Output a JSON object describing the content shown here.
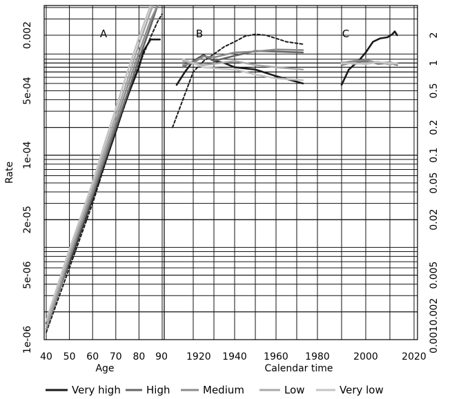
{
  "chart_data": {
    "type": "line",
    "ylabel": "Rate",
    "panels": [
      {
        "label": "A",
        "xlabel": "Age",
        "xlim": [
          40,
          90
        ],
        "x_ticks": [
          "40",
          "50",
          "60",
          "70",
          "80",
          "90"
        ]
      },
      {
        "label": "B",
        "xlabel": "Calendar time",
        "xlim": [
          1912,
          1980
        ],
        "x_ticks": [
          "1920",
          "1940",
          "1960",
          "1980"
        ]
      },
      {
        "label": "C",
        "xlabel": "",
        "xlim": [
          1980,
          2020
        ],
        "x_ticks": [
          "2000",
          "2020"
        ]
      }
    ],
    "left_axis": {
      "scale": "log",
      "ylim": [
        1e-06,
        0.0042
      ],
      "ticks": [
        {
          "value": 1e-06,
          "label": "1e-06"
        },
        {
          "value": 5e-06,
          "label": "5e-06"
        },
        {
          "value": 2e-05,
          "label": "2e-05"
        },
        {
          "value": 0.0001,
          "label": "1e-04"
        },
        {
          "value": 0.0005,
          "label": "5e-04"
        },
        {
          "value": 0.002,
          "label": "0.002"
        }
      ]
    },
    "right_axis": {
      "scale": "log",
      "ylim": [
        0.001,
        4.2
      ],
      "ticks": [
        {
          "value": 0.001,
          "label": "0.001"
        },
        {
          "value": 0.002,
          "label": "0.002"
        },
        {
          "value": 0.005,
          "label": "0.005"
        },
        {
          "value": 0.02,
          "label": "0.02"
        },
        {
          "value": 0.05,
          "label": "0.05"
        },
        {
          "value": 0.1,
          "label": "0.1"
        },
        {
          "value": 0.2,
          "label": "0.2"
        },
        {
          "value": 0.5,
          "label": "0.5"
        },
        {
          "value": 1,
          "label": "1"
        },
        {
          "value": 2,
          "label": "2"
        }
      ]
    },
    "grid": true,
    "legend": {
      "position": "bottom",
      "entries": [
        {
          "name": "Very high",
          "color": "#1a1a1a"
        },
        {
          "name": "High",
          "color": "#666666"
        },
        {
          "name": "Medium",
          "color": "#8c8c8c"
        },
        {
          "name": "Low",
          "color": "#a8a8a8"
        },
        {
          "name": "Very low",
          "color": "#c4c4c4"
        }
      ]
    },
    "series": [
      {
        "panel": 0,
        "style": "Very high",
        "dashed": false,
        "x": [
          40,
          50,
          60,
          65,
          70,
          73,
          76,
          80,
          82,
          85,
          87,
          89
        ],
        "y": [
          1.5e-06,
          6.8e-06,
          3.4e-05,
          7.8e-05,
          0.00018,
          0.00031,
          0.0005,
          0.0009,
          0.00135,
          0.0018,
          0.0018,
          0.0018
        ]
      },
      {
        "panel": 0,
        "style": "Very high",
        "dashed": true,
        "x": [
          40,
          50,
          60,
          65,
          70,
          75,
          80,
          85,
          88,
          90
        ],
        "y": [
          1.2e-06,
          6e-06,
          3e-05,
          7.5e-05,
          0.00018,
          0.00042,
          0.00095,
          0.0019,
          0.0028,
          0.0034
        ]
      },
      {
        "panel": 0,
        "style": "High",
        "dashed": false,
        "x": [
          40,
          50,
          60,
          65,
          70,
          75,
          80,
          85,
          88
        ],
        "y": [
          1.3e-06,
          7.2e-06,
          3.6e-05,
          8.5e-05,
          0.0002,
          0.00046,
          0.0011,
          0.0025,
          0.0042
        ]
      },
      {
        "panel": 0,
        "style": "Medium",
        "dashed": false,
        "x": [
          40,
          50,
          60,
          65,
          70,
          75,
          80,
          85,
          88
        ],
        "y": [
          1.3e-06,
          7.8e-06,
          4e-05,
          9.5e-05,
          0.00023,
          0.00055,
          0.0013,
          0.0029,
          0.0042
        ]
      },
      {
        "panel": 0,
        "style": "Low",
        "dashed": false,
        "x": [
          40,
          50,
          60,
          65,
          70,
          75,
          80,
          85,
          86
        ],
        "y": [
          1.4e-06,
          8.5e-06,
          4.5e-05,
          0.00011,
          0.00027,
          0.00065,
          0.0016,
          0.0036,
          0.0042
        ]
      },
      {
        "panel": 0,
        "style": "Very low",
        "dashed": false,
        "x": [
          40,
          50,
          60,
          65,
          70,
          75,
          80,
          85
        ],
        "y": [
          1.6e-06,
          9.5e-06,
          5e-05,
          0.00013,
          0.00032,
          0.0008,
          0.0019,
          0.0042
        ]
      },
      {
        "panel": 1,
        "style": "Very high",
        "dashed": false,
        "x": [
          1912,
          1916,
          1920,
          1925,
          1930,
          1935,
          1940,
          1950,
          1960,
          1973
        ],
        "y": [
          0.58,
          0.8,
          1.05,
          1.22,
          1.05,
          1.0,
          0.9,
          0.85,
          0.72,
          0.6
        ]
      },
      {
        "panel": 1,
        "style": "Very high",
        "dashed": true,
        "x": [
          1910,
          1915,
          1920,
          1925,
          1930,
          1935,
          1940,
          1945,
          1950,
          1955,
          1960,
          1965,
          1973
        ],
        "y": [
          0.2,
          0.4,
          0.8,
          1.05,
          1.25,
          1.5,
          1.7,
          1.95,
          2.05,
          2.0,
          1.85,
          1.7,
          1.6
        ]
      },
      {
        "panel": 1,
        "style": "High",
        "dashed": false,
        "x": [
          1915,
          1920,
          1925,
          1930,
          1940,
          1950,
          1960,
          1973
        ],
        "y": [
          0.9,
          1.05,
          1.2,
          1.05,
          1.2,
          1.35,
          1.33,
          1.3
        ]
      },
      {
        "panel": 1,
        "style": "Medium",
        "dashed": false,
        "x": [
          1915,
          1920,
          1925,
          1930,
          1940,
          1950,
          1960,
          1973
        ],
        "y": [
          0.95,
          1.0,
          1.18,
          1.15,
          1.3,
          1.33,
          1.4,
          1.38
        ]
      },
      {
        "panel": 1,
        "style": "Low",
        "dashed": false,
        "x": [
          1915,
          1920,
          1925,
          1930,
          1940,
          1950,
          1960,
          1973
        ],
        "y": [
          1.05,
          1.0,
          0.95,
          0.98,
          1.05,
          0.95,
          0.9,
          0.85
        ]
      },
      {
        "panel": 1,
        "style": "Very low",
        "dashed": false,
        "x": [
          1915,
          1920,
          1925,
          1930,
          1940,
          1950,
          1960,
          1973
        ],
        "y": [
          1.1,
          1.0,
          0.9,
          0.88,
          0.85,
          0.75,
          0.68,
          0.65
        ]
      },
      {
        "panel": 2,
        "style": "Very high",
        "dashed": false,
        "x": [
          1990,
          1993,
          1997,
          2000,
          2003,
          2006,
          2009,
          2011,
          2012,
          2013
        ],
        "y": [
          0.58,
          0.85,
          1.05,
          1.3,
          1.7,
          1.85,
          1.9,
          2.05,
          2.2,
          2.0
        ]
      },
      {
        "panel": 2,
        "style": "High",
        "dashed": false,
        "x": [
          1990,
          1995,
          2000,
          2005,
          2010,
          2013
        ],
        "y": [
          0.95,
          1.02,
          1.05,
          0.98,
          1.0,
          0.95
        ]
      },
      {
        "panel": 2,
        "style": "Medium",
        "dashed": false,
        "x": [
          1990,
          1995,
          2000,
          2005,
          2010,
          2013
        ],
        "y": [
          1.0,
          1.05,
          1.08,
          1.0,
          1.02,
          0.97
        ]
      },
      {
        "panel": 2,
        "style": "Low",
        "dashed": false,
        "x": [
          1990,
          1995,
          2000,
          2005,
          2010,
          2013
        ],
        "y": [
          1.02,
          0.98,
          1.0,
          1.03,
          0.96,
          1.0
        ]
      },
      {
        "panel": 2,
        "style": "Very low",
        "dashed": false,
        "x": [
          1990,
          1995,
          2000,
          2005,
          2010,
          2013
        ],
        "y": [
          0.98,
          1.0,
          0.97,
          1.02,
          1.0,
          0.98
        ]
      }
    ]
  }
}
